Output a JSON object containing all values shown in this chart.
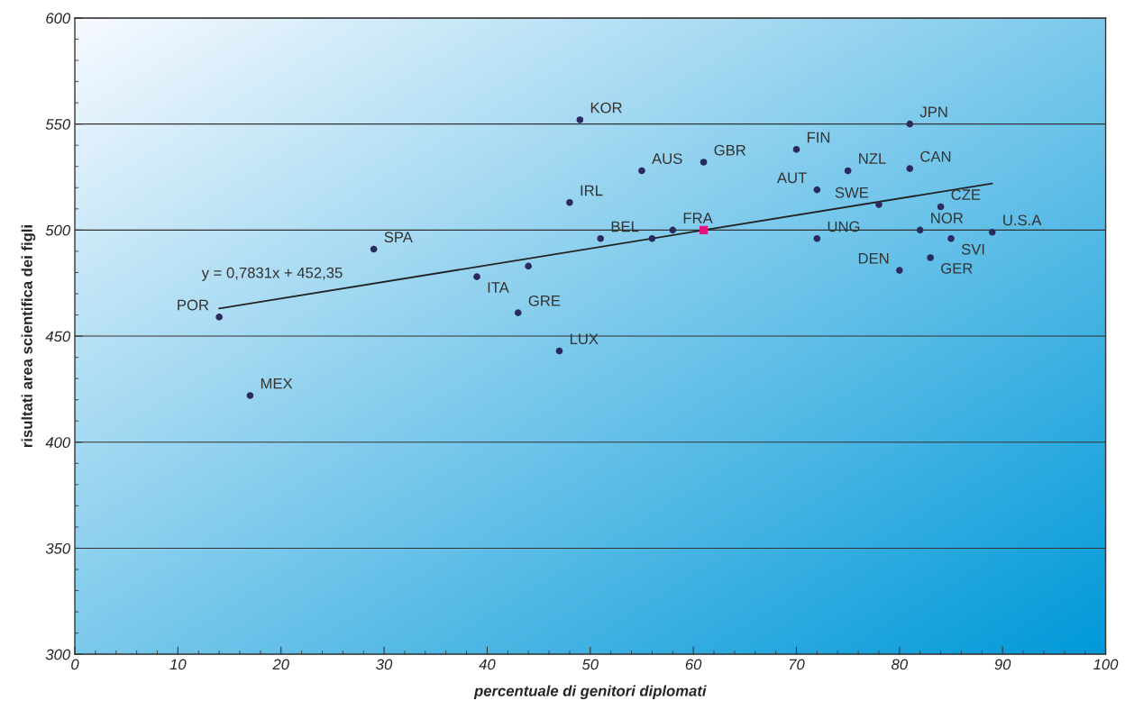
{
  "chart_data": {
    "type": "scatter",
    "xlabel": "percentuale di genitori diplomati",
    "ylabel": "risultati area scientifica dei figli",
    "xlim": [
      0,
      100
    ],
    "xticks": [
      0,
      10,
      20,
      30,
      40,
      50,
      60,
      70,
      80,
      90,
      100
    ],
    "ylim": [
      300,
      600
    ],
    "yticks": [
      300,
      350,
      400,
      450,
      500,
      550,
      600
    ],
    "grid": "y",
    "marker": "circle",
    "series": [
      {
        "color": "#2b2a5e",
        "x": [
          14,
          17,
          29,
          39,
          44,
          43,
          47,
          48,
          49,
          51,
          55,
          56,
          58,
          61,
          70,
          72,
          72,
          75,
          78,
          80,
          81,
          81,
          82,
          83,
          84,
          85,
          89
        ],
        "values": [
          459,
          422,
          491,
          478,
          483,
          461,
          443,
          513,
          552,
          496,
          528,
          496,
          500,
          532,
          538,
          519,
          496,
          528,
          512,
          481,
          550,
          529,
          500,
          487,
          511,
          496,
          499
        ],
        "value_labels": [
          "POR",
          "MEX",
          "SPA",
          "ITA",
          null,
          "GRE",
          "LUX",
          "IRL",
          "KOR",
          "BEL",
          "AUS",
          null,
          "FRA",
          "GBR",
          "FIN",
          "AUT",
          "UNG",
          "NZL",
          "SWE",
          "DEN",
          "JPN",
          "CAN",
          "NOR",
          "GER",
          "CZE",
          "SVI",
          "U.S.A"
        ]
      },
      {
        "type": "scatter",
        "color": "#e0157f",
        "marker": "square",
        "x": [
          61
        ],
        "values": [
          500
        ]
      },
      {
        "type": "line",
        "color": "#222222",
        "marker": "none",
        "x": [
          14,
          89
        ],
        "values": [
          463,
          522
        ]
      }
    ],
    "annotations": [
      {
        "text": "y = 0,7831x + 452,35",
        "x": 14,
        "y": 463
      }
    ]
  }
}
